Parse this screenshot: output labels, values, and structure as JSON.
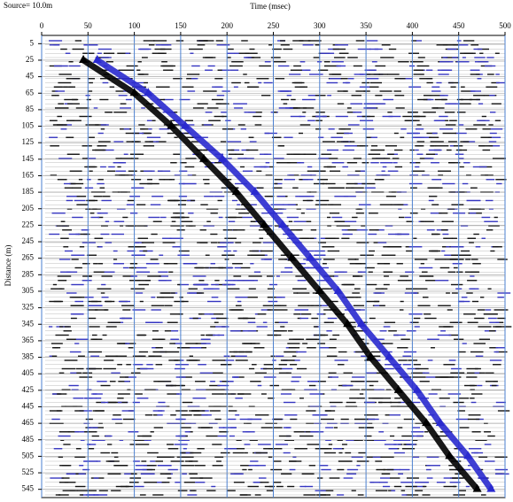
{
  "chart_data": {
    "type": "seismic",
    "title": "Source= 10.0m",
    "x_label": "Time (msec)",
    "y_label": "Distance (m)",
    "xlim": [
      0,
      500
    ],
    "xticks": [
      0,
      50,
      100,
      150,
      200,
      250,
      300,
      350,
      400,
      450,
      500
    ],
    "ylim": [
      -5,
      555
    ],
    "yticks": [
      5,
      25,
      45,
      65,
      85,
      105,
      125,
      145,
      165,
      185,
      205,
      225,
      245,
      265,
      285,
      305,
      325,
      345,
      365,
      385,
      405,
      425,
      445,
      465,
      485,
      505,
      525,
      545
    ],
    "grid": true,
    "series": [
      {
        "color": "#000000",
        "x": [
          45,
          100,
          140,
          175,
          210,
          240,
          270,
          300,
          330,
          355,
          385,
          415,
          440,
          470
        ],
        "values": [
          25,
          65,
          105,
          145,
          185,
          225,
          265,
          305,
          345,
          385,
          425,
          465,
          505,
          545
        ]
      },
      {
        "color": "#2a2acf",
        "x": [
          60,
          115,
          155,
          195,
          230,
          260,
          290,
          320,
          345,
          375,
          405,
          430,
          460,
          485
        ],
        "values": [
          25,
          65,
          105,
          145,
          185,
          225,
          265,
          305,
          345,
          385,
          425,
          465,
          505,
          545
        ]
      }
    ]
  }
}
